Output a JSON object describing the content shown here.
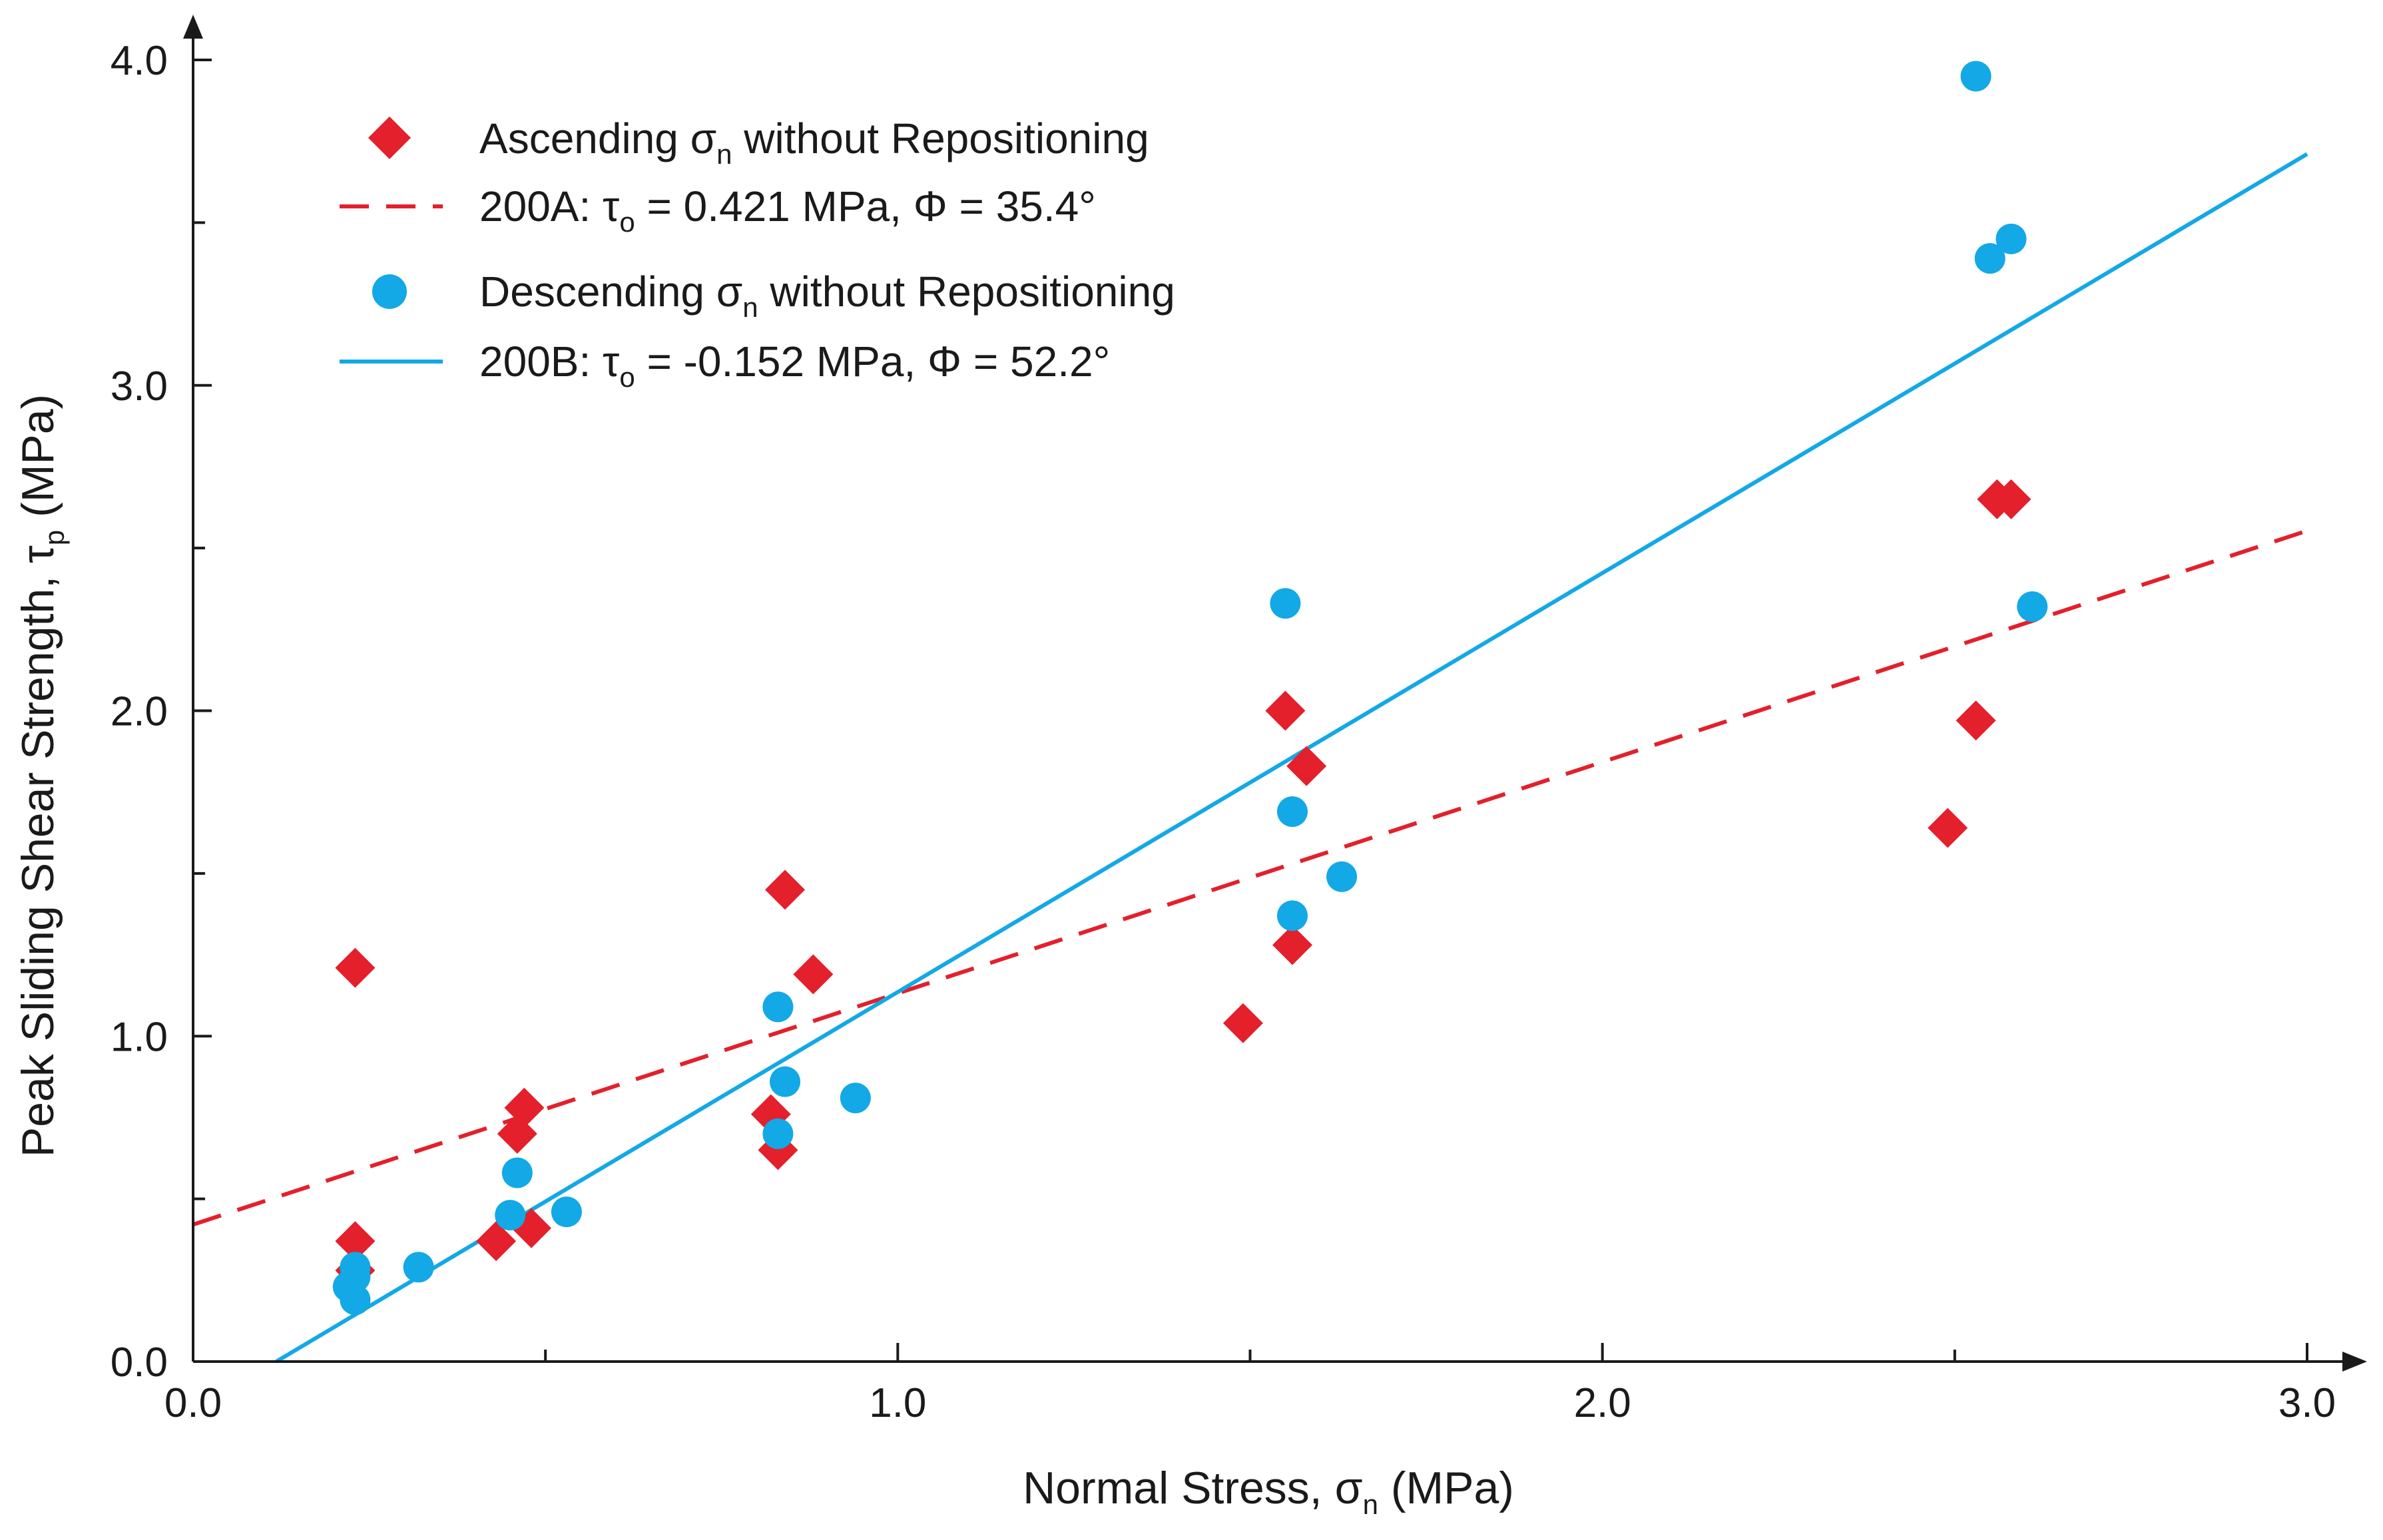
{
  "chart_data": {
    "type": "scatter",
    "title": "",
    "xlabel": {
      "main": "Normal Stress, σ",
      "sub": "n",
      "after": " (MPa)"
    },
    "ylabel": {
      "main": "Peak Sliding Shear Strength, τ",
      "sub": "p",
      "after": " (MPa)"
    },
    "xlim": [
      0,
      3.0
    ],
    "ylim": [
      0,
      4.0
    ],
    "xticks": [
      "0.0",
      "1.0",
      "2.0",
      "3.0"
    ],
    "yticks": [
      "0.0",
      "1.0",
      "2.0",
      "3.0",
      "4.0"
    ],
    "grid": false,
    "legend_position": "top-left",
    "colors": {
      "ascending": "#e3202b",
      "descending": "#13a8e6",
      "axis": "#1a1a1a"
    },
    "series": [
      {
        "name": "Ascending σn without Repositioning",
        "legend": {
          "pre": "Ascending σ",
          "sub": "n",
          "post": " without Repositioning"
        },
        "marker": "diamond",
        "points": [
          [
            0.23,
            1.21
          ],
          [
            0.23,
            0.37
          ],
          [
            0.23,
            0.28
          ],
          [
            0.43,
            0.37
          ],
          [
            0.46,
            0.7
          ],
          [
            0.47,
            0.78
          ],
          [
            0.48,
            0.41
          ],
          [
            0.82,
            0.76
          ],
          [
            0.83,
            0.65
          ],
          [
            0.84,
            1.45
          ],
          [
            0.88,
            1.19
          ],
          [
            1.49,
            1.04
          ],
          [
            1.55,
            2.0
          ],
          [
            1.56,
            1.28
          ],
          [
            1.58,
            1.83
          ],
          [
            2.49,
            1.64
          ],
          [
            2.53,
            1.97
          ],
          [
            2.56,
            2.65
          ],
          [
            2.58,
            2.65
          ]
        ]
      },
      {
        "name": "Descending σn without Repositioning",
        "legend": {
          "pre": "Descending σ",
          "sub": "n",
          "post": " without Repositioning"
        },
        "marker": "circle",
        "points": [
          [
            0.22,
            0.23
          ],
          [
            0.23,
            0.29
          ],
          [
            0.23,
            0.26
          ],
          [
            0.23,
            0.19
          ],
          [
            0.32,
            0.29
          ],
          [
            0.45,
            0.45
          ],
          [
            0.46,
            0.58
          ],
          [
            0.53,
            0.46
          ],
          [
            0.83,
            1.09
          ],
          [
            0.83,
            0.7
          ],
          [
            0.84,
            0.86
          ],
          [
            0.94,
            0.81
          ],
          [
            1.55,
            2.33
          ],
          [
            1.56,
            1.69
          ],
          [
            1.56,
            1.37
          ],
          [
            1.63,
            1.49
          ],
          [
            2.53,
            3.95
          ],
          [
            2.55,
            3.39
          ],
          [
            2.58,
            3.45
          ],
          [
            2.61,
            2.32
          ]
        ]
      }
    ],
    "fits": [
      {
        "name": "200A",
        "legend": {
          "pre": "200A: τ",
          "sub": "o",
          "post": " = 0.421 MPa, Φ = 35.4°"
        },
        "style": "dashed",
        "intercept": 0.421,
        "slope": 0.7107,
        "x_range": [
          0.0,
          3.0
        ]
      },
      {
        "name": "200B",
        "legend": {
          "pre": "200B: τ",
          "sub": "o",
          "post": " = -0.152 MPa, Φ = 52.2°"
        },
        "style": "solid",
        "intercept": -0.152,
        "slope": 1.2876,
        "x_range": [
          0.118,
          3.0
        ]
      }
    ]
  }
}
